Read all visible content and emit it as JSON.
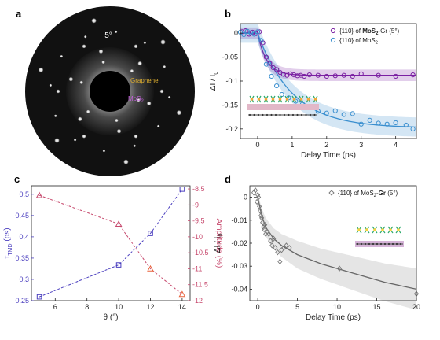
{
  "panels": {
    "a": "a",
    "b": "b",
    "c": "c",
    "d": "d"
  },
  "pattern_labels": {
    "angle": "5°",
    "graphene": "Graphene",
    "mos2": "MoS",
    "mos2_sub": "2"
  },
  "colors": {
    "purple": "#7a1fa2",
    "blue": "#3a8fcf",
    "violet": "#4b3fbf",
    "pink": "#c74a6e",
    "orange": "#e8623a",
    "gray": "#7a7a7a"
  },
  "chart_data": [
    {
      "panel": "b",
      "type": "scatter",
      "xlabel": "Delay Time (ps)",
      "ylabel": "ΔI / I",
      "ylabel_sub": "0",
      "xlim": [
        -0.5,
        4.6
      ],
      "ylim": [
        -0.22,
        0.02
      ],
      "xticks": [
        0,
        1,
        2,
        3,
        4
      ],
      "yticks": [
        0,
        -0.05,
        -0.1,
        -0.15,
        -0.2
      ],
      "xtick_labels": [
        "0",
        "1",
        "2",
        "3",
        "4"
      ],
      "ytick_labels": [
        "0",
        "-0.05",
        "-0.1",
        "-0.15",
        "-0.2"
      ],
      "legend": [
        {
          "prefix": "{110} of ",
          "bold": "MoS",
          "bold_sub": "2",
          "suffix": "-Gr (5°)"
        },
        {
          "prefix": "{110} of MoS",
          "sub": "2",
          "suffix": ""
        }
      ],
      "series": [
        {
          "color": "#7a1fa2",
          "x": [
            -0.45,
            -0.35,
            -0.25,
            -0.15,
            -0.05,
            0.05,
            0.15,
            0.25,
            0.35,
            0.45,
            0.55,
            0.65,
            0.75,
            0.85,
            0.95,
            1.05,
            1.15,
            1.25,
            1.35,
            1.5,
            1.75,
            2.0,
            2.25,
            2.5,
            2.75,
            3.0,
            3.5,
            4.0,
            4.5
          ],
          "y": [
            0.003,
            0.005,
            -0.002,
            0.002,
            -0.001,
            0.003,
            -0.02,
            -0.05,
            -0.063,
            -0.072,
            -0.076,
            -0.082,
            -0.086,
            -0.088,
            -0.085,
            -0.087,
            -0.089,
            -0.088,
            -0.09,
            -0.087,
            -0.088,
            -0.09,
            -0.089,
            -0.088,
            -0.09,
            -0.085,
            -0.088,
            -0.09,
            -0.087
          ],
          "fit_tau": 0.26,
          "fit_amp": -0.088,
          "band": 0.012
        },
        {
          "color": "#3a8fcf",
          "x": [
            -0.5,
            -0.4,
            -0.3,
            -0.2,
            -0.1,
            0.0,
            0.1,
            0.25,
            0.4,
            0.55,
            0.7,
            0.9,
            1.1,
            1.3,
            1.5,
            1.75,
            2.0,
            2.25,
            2.5,
            2.75,
            3.0,
            3.25,
            3.5,
            3.75,
            4.0,
            4.3,
            4.5
          ],
          "y": [
            0.002,
            -0.003,
            0.004,
            0.001,
            -0.002,
            0.003,
            -0.015,
            -0.065,
            -0.09,
            -0.11,
            -0.128,
            -0.135,
            -0.142,
            -0.148,
            -0.155,
            -0.163,
            -0.167,
            -0.162,
            -0.17,
            -0.168,
            -0.19,
            -0.182,
            -0.188,
            -0.19,
            -0.187,
            -0.192,
            -0.2
          ],
          "fit_tau": 1.0,
          "fit_amp": -0.198,
          "band": 0.02
        }
      ]
    },
    {
      "panel": "c",
      "type": "line",
      "xlabel": "θ (°)",
      "ylabel_left": "τ",
      "ylabel_left_sub": "TMD",
      "ylabel_left_unit": " (ps)",
      "ylabel_right": "Amplitude (%)",
      "xlim": [
        4.5,
        14.5
      ],
      "xticks": [
        6,
        8,
        10,
        12,
        14
      ],
      "xtick_labels": [
        "6",
        "8",
        "10",
        "12",
        "14"
      ],
      "ylim_left": [
        0.25,
        0.52
      ],
      "yticks_left": [
        0.25,
        0.3,
        0.35,
        0.4,
        0.45,
        0.5
      ],
      "ytick_labels_left": [
        "0.25",
        "0.3",
        "0.35",
        "0.4",
        "0.45",
        "0.5"
      ],
      "ylim_right": [
        -12.0,
        -8.4
      ],
      "yticks_right": [
        -8.5,
        -9,
        -9.5,
        -10,
        -10.5,
        -11,
        -11.5,
        -12
      ],
      "ytick_labels_right": [
        "-8.5",
        "-9",
        "-9.5",
        "-10",
        "-10.5",
        "-11",
        "-11.5",
        "-12"
      ],
      "series": [
        {
          "axis": "left",
          "marker": "square",
          "color": "#4b3fbf",
          "x": [
            5,
            10,
            12,
            14
          ],
          "y": [
            0.259,
            0.334,
            0.408,
            0.512
          ]
        },
        {
          "axis": "right",
          "marker": "triangle",
          "color": "#c74a6e",
          "x": [
            5,
            10,
            12,
            14
          ],
          "y": [
            -8.7,
            -9.6,
            -11.0,
            -11.8
          ]
        }
      ]
    },
    {
      "panel": "d",
      "type": "scatter",
      "xlabel": "Delay Time (ps)",
      "ylabel": "ΔI / I",
      "ylabel_sub": "0",
      "xlim": [
        -1,
        20
      ],
      "ylim": [
        -0.045,
        0.005
      ],
      "xticks": [
        0,
        5,
        10,
        15,
        20
      ],
      "xtick_labels": [
        "0",
        "5",
        "10",
        "15",
        "20"
      ],
      "yticks": [
        0,
        -0.01,
        -0.02,
        -0.03,
        -0.04
      ],
      "ytick_labels": [
        "0",
        "-0.01",
        "-0.02",
        "-0.03",
        "-0.04"
      ],
      "legend": [
        {
          "prefix": "{110} of MoS",
          "sub": "2",
          "bold": "-Gr",
          "suffix": " (5°)"
        }
      ],
      "series": [
        {
          "color": "#777777",
          "x": [
            -0.5,
            -0.3,
            -0.1,
            0.0,
            0.1,
            0.2,
            0.3,
            0.4,
            0.5,
            0.6,
            0.7,
            0.8,
            0.9,
            1.0,
            1.2,
            1.4,
            1.6,
            1.8,
            2.0,
            2.2,
            2.5,
            2.8,
            3.0,
            3.3,
            3.6,
            4.0,
            10.3,
            20.0
          ],
          "y": [
            0.002,
            0.003,
            -0.002,
            0.001,
            0.0,
            -0.004,
            -0.006,
            -0.008,
            -0.009,
            -0.011,
            -0.013,
            -0.014,
            -0.012,
            -0.016,
            -0.015,
            -0.016,
            -0.019,
            -0.021,
            -0.018,
            -0.022,
            -0.024,
            -0.028,
            -0.023,
            -0.022,
            -0.021,
            -0.022,
            -0.031,
            -0.042
          ],
          "fit": [
            [
              -0.5,
              0
            ],
            [
              0,
              0
            ],
            [
              0.5,
              -0.008
            ],
            [
              1,
              -0.013
            ],
            [
              2,
              -0.018
            ],
            [
              3,
              -0.021
            ],
            [
              5,
              -0.025
            ],
            [
              8,
              -0.029
            ],
            [
              12,
              -0.033
            ],
            [
              16,
              -0.037
            ],
            [
              20,
              -0.04
            ]
          ],
          "band": [
            [
              0,
              0.002
            ],
            [
              1,
              0.004
            ],
            [
              3,
              0.005
            ],
            [
              5,
              0.006
            ],
            [
              10,
              0.007
            ],
            [
              15,
              0.008
            ],
            [
              20,
              0.009
            ]
          ]
        }
      ]
    }
  ]
}
